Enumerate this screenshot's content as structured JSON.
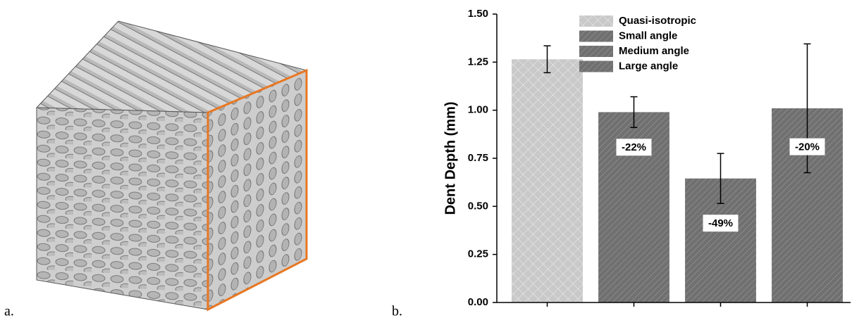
{
  "panel_labels": [
    "a.",
    "b."
  ],
  "chart_data": {
    "type": "bar",
    "ylabel": "Dent Depth (mm)",
    "categories": [
      null,
      null,
      null,
      null
    ],
    "series": [
      {
        "name": "Quasi-isotropic",
        "color": "#c9c9c9",
        "values": [
          1.265,
          null,
          null,
          null
        ],
        "errors": [
          0.07,
          null,
          null,
          null
        ]
      },
      {
        "name": "Small angle",
        "color": "#707070",
        "values": [
          null,
          0.99,
          null,
          null
        ],
        "errors": [
          null,
          0.08,
          null,
          null
        ]
      },
      {
        "name": "Medium angle",
        "color": "#707070",
        "values": [
          null,
          null,
          0.645,
          null
        ],
        "errors": [
          null,
          null,
          0.13,
          null
        ]
      },
      {
        "name": "Large angle",
        "color": "#707070",
        "values": [
          null,
          null,
          null,
          1.01
        ],
        "errors": [
          null,
          null,
          null,
          0.335
        ]
      }
    ],
    "annotations": [
      null,
      "-22%",
      "-49%",
      "-20%"
    ],
    "ylim": [
      0,
      1.5
    ],
    "yticks": [
      {
        "value": 0,
        "label": "0.00"
      },
      {
        "value": 0.25,
        "label": "0.25"
      },
      {
        "value": 0.5,
        "label": "0.50"
      },
      {
        "value": 0.75,
        "label": "0.75"
      },
      {
        "value": 1,
        "label": "1.00"
      },
      {
        "value": 1.25,
        "label": "1.25"
      },
      {
        "value": 1.5,
        "label": "1.50"
      }
    ],
    "legend": "top-center"
  }
}
